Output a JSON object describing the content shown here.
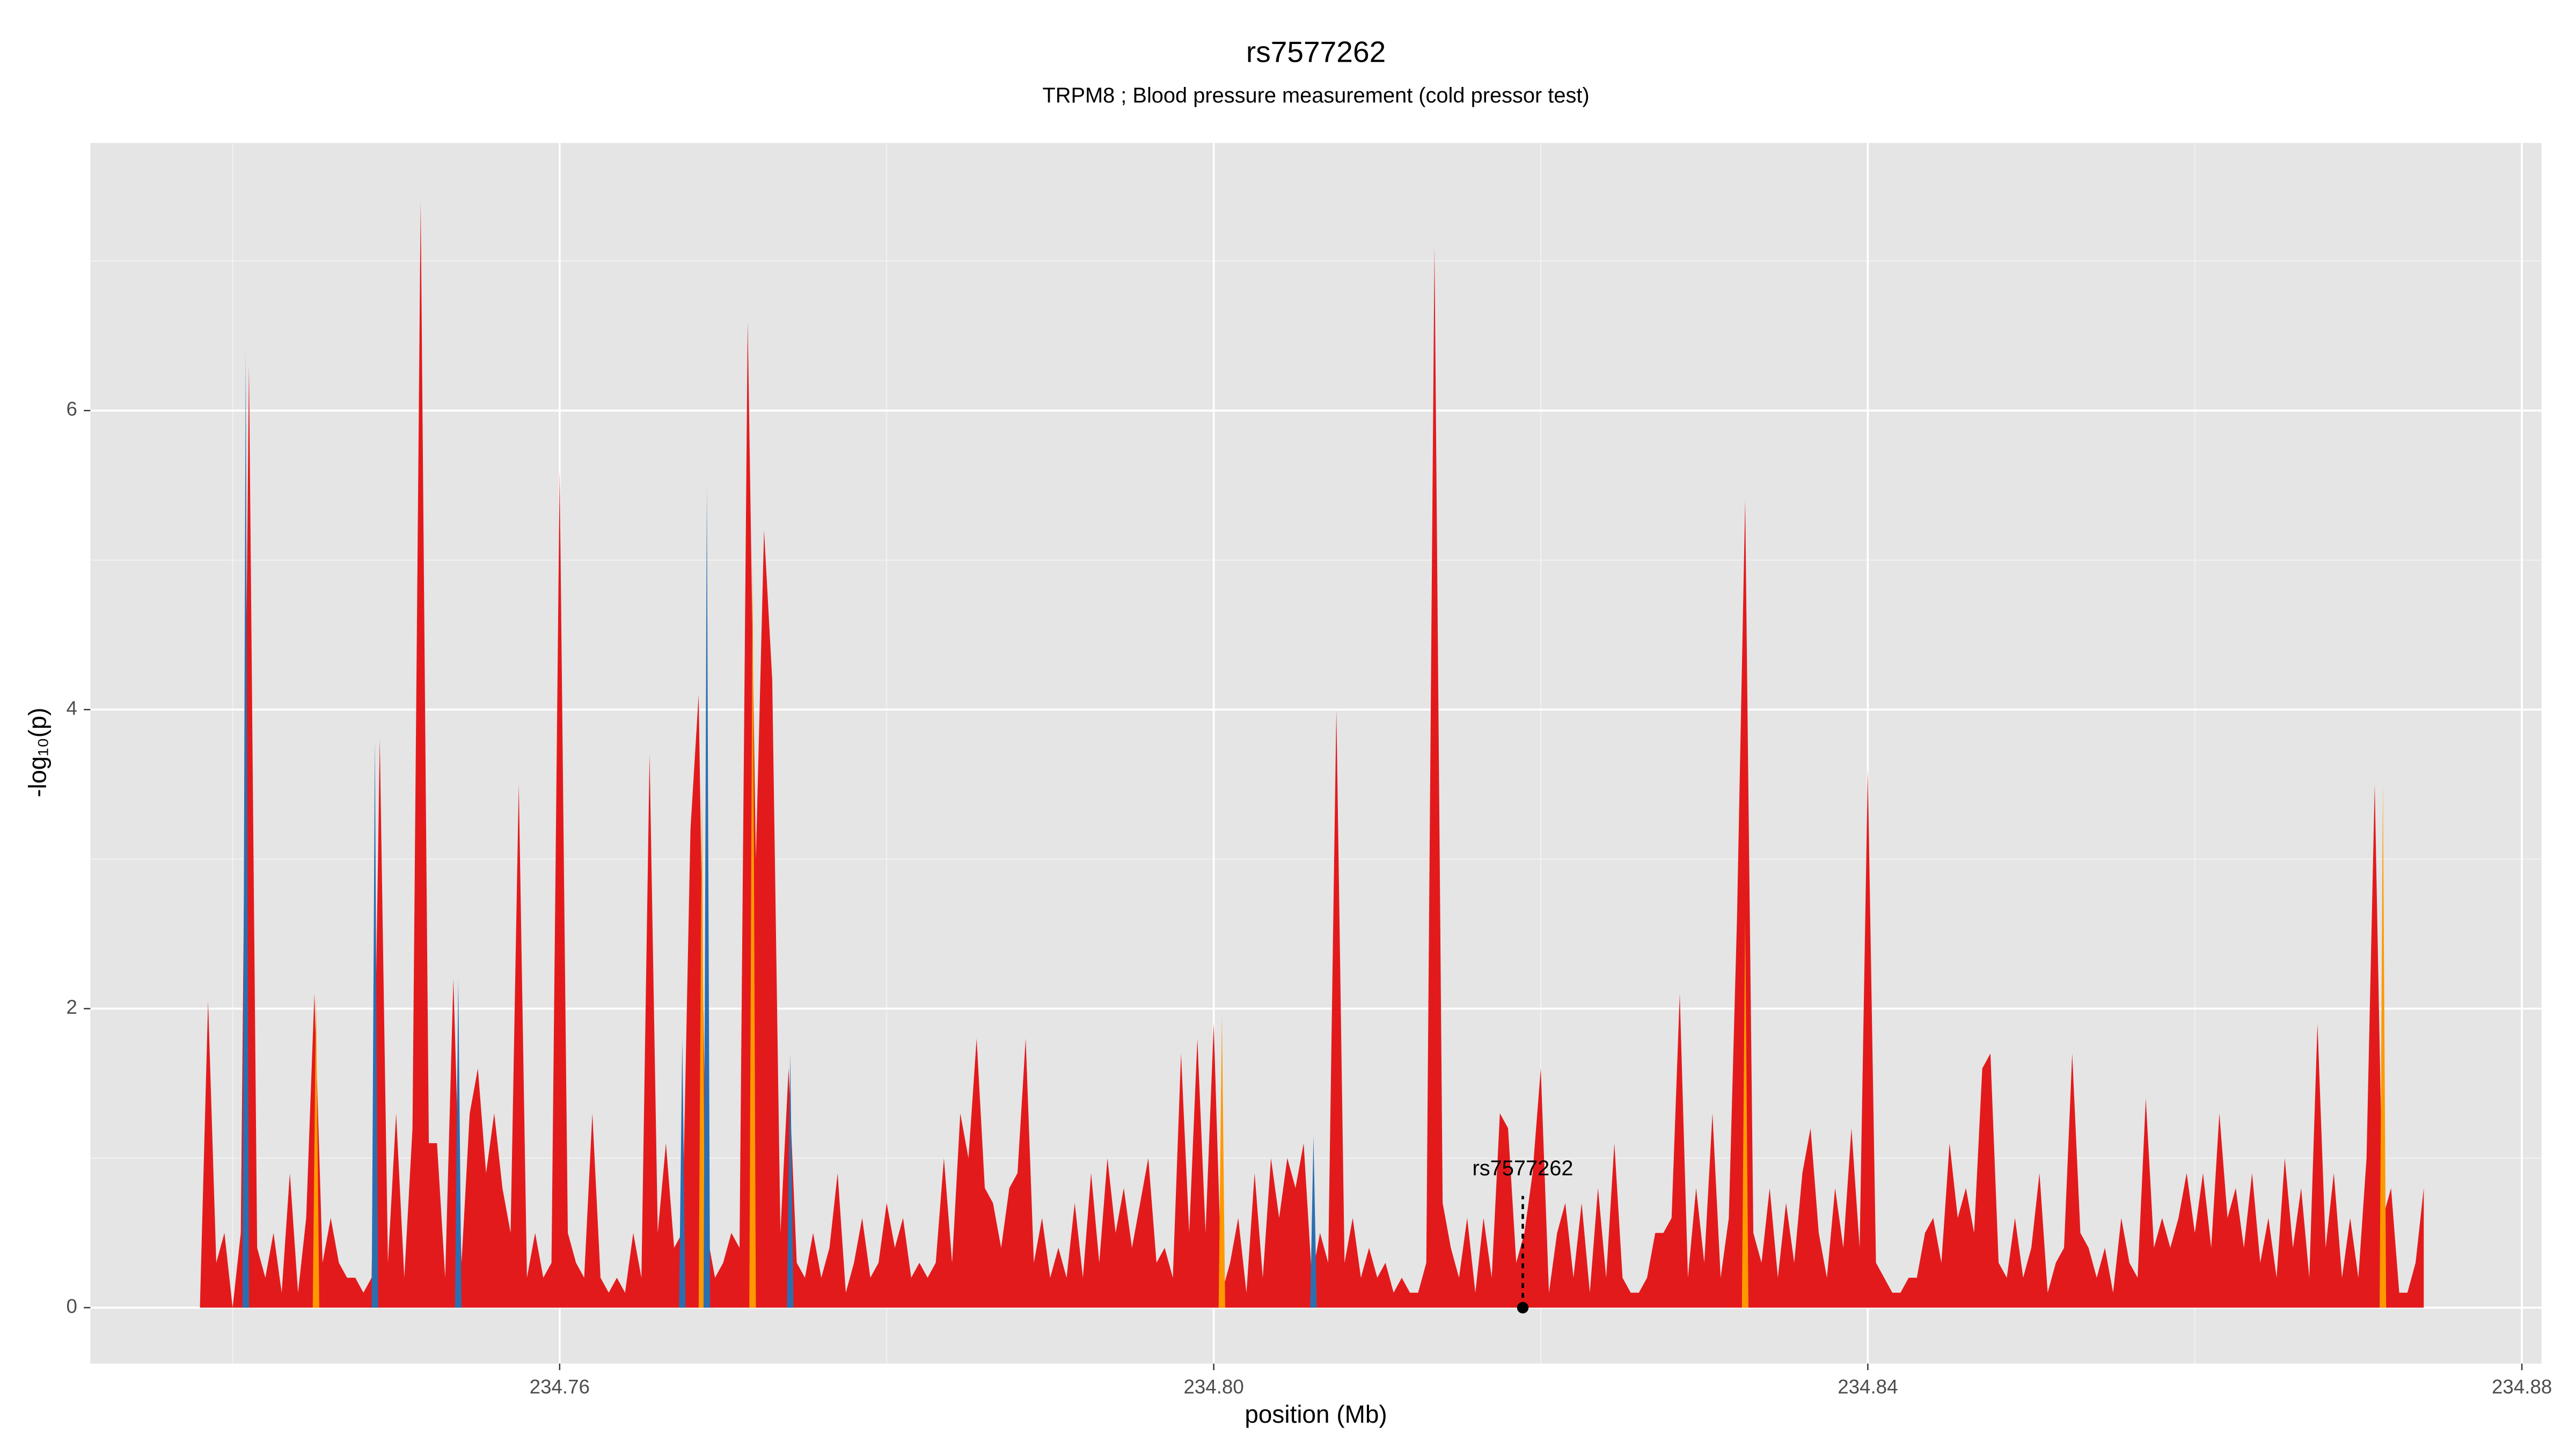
{
  "chart_data": {
    "type": "area",
    "title": "rs7577262",
    "subtitle": "TRPM8 ; Blood pressure measurement (cold pressor test)",
    "x_label": "position (Mb)",
    "y_label": "-log₁₀(p)",
    "xlim": [
      234.7313,
      234.8812
    ],
    "ylim": [
      -0.374,
      7.79
    ],
    "xticks": [
      234.76,
      {
        "value": 234.8,
        "label": "234.80"
      },
      234.84,
      234.88
    ],
    "yticks": [
      0,
      2,
      4,
      6
    ],
    "x_minor_grid": [
      234.74,
      234.78,
      234.82,
      234.86
    ],
    "y_minor_grid": [
      1,
      3,
      5,
      7
    ],
    "grid": true,
    "background": "#e5e5e5",
    "series": [
      {
        "color": "#e31a1c",
        "x": [
          234.738,
          234.7385,
          234.739,
          234.7395,
          234.74,
          234.7405,
          234.741,
          234.7415,
          234.742,
          234.7425,
          234.743,
          234.7435,
          234.744,
          234.7445,
          234.745,
          234.7455,
          234.746,
          234.7465,
          234.747,
          234.7475,
          234.748,
          234.7485,
          234.749,
          234.7495,
          234.75,
          234.7505,
          234.751,
          234.7515,
          234.752,
          234.7525,
          234.753,
          234.7535,
          234.754,
          234.7545,
          234.755,
          234.7555,
          234.756,
          234.7565,
          234.757,
          234.7575,
          234.758,
          234.7585,
          234.759,
          234.7595,
          234.76,
          234.7605,
          234.761,
          234.7615,
          234.762,
          234.7625,
          234.763,
          234.7635,
          234.764,
          234.7645,
          234.765,
          234.7655,
          234.766,
          234.7665,
          234.767,
          234.7675,
          234.768,
          234.7685,
          234.769,
          234.7695,
          234.77,
          234.7705,
          234.771,
          234.7715,
          234.772,
          234.7725,
          234.773,
          234.7735,
          234.774,
          234.7745,
          234.775,
          234.7755,
          234.776,
          234.7765,
          234.777,
          234.7775,
          234.778,
          234.7785,
          234.779,
          234.7795,
          234.78,
          234.7805,
          234.781,
          234.7815,
          234.782,
          234.7825,
          234.783,
          234.7835,
          234.784,
          234.7845,
          234.785,
          234.7855,
          234.786,
          234.7865,
          234.787,
          234.7875,
          234.788,
          234.7885,
          234.789,
          234.7895,
          234.79,
          234.7905,
          234.791,
          234.7915,
          234.792,
          234.7925,
          234.793,
          234.7935,
          234.794,
          234.7945,
          234.795,
          234.7955,
          234.796,
          234.7965,
          234.797,
          234.7975,
          234.798,
          234.7985,
          234.799,
          234.7995,
          234.8,
          234.8005,
          234.801,
          234.8015,
          234.802,
          234.8025,
          234.803,
          234.8035,
          234.804,
          234.8045,
          234.805,
          234.8055,
          234.806,
          234.8065,
          234.807,
          234.8075,
          234.808,
          234.8085,
          234.809,
          234.8095,
          234.81,
          234.8105,
          234.811,
          234.8115,
          234.812,
          234.8125,
          234.813,
          234.8135,
          234.814,
          234.8145,
          234.815,
          234.8155,
          234.816,
          234.8165,
          234.817,
          234.8175,
          234.818,
          234.8185,
          234.819,
          234.8195,
          234.82,
          234.8205,
          234.821,
          234.8215,
          234.822,
          234.8225,
          234.823,
          234.8235,
          234.824,
          234.8245,
          234.825,
          234.8255,
          234.826,
          234.8265,
          234.827,
          234.8275,
          234.828,
          234.8285,
          234.829,
          234.8295,
          234.83,
          234.8305,
          234.831,
          234.8315,
          234.832,
          234.8325,
          234.833,
          234.8335,
          234.834,
          234.8345,
          234.835,
          234.8355,
          234.836,
          234.8365,
          234.837,
          234.8375,
          234.838,
          234.8385,
          234.839,
          234.8395,
          234.84,
          234.8405,
          234.841,
          234.8415,
          234.842,
          234.8425,
          234.843,
          234.8435,
          234.844,
          234.8445,
          234.845,
          234.8455,
          234.846,
          234.8465,
          234.847,
          234.8475,
          234.848,
          234.8485,
          234.849,
          234.8495,
          234.85,
          234.8505,
          234.851,
          234.8515,
          234.852,
          234.8525,
          234.853,
          234.8535,
          234.854,
          234.8545,
          234.855,
          234.8555,
          234.856,
          234.8565,
          234.857,
          234.8575,
          234.858,
          234.8585,
          234.859,
          234.8595,
          234.86,
          234.8605,
          234.861,
          234.8615,
          234.862,
          234.8625,
          234.863,
          234.8635,
          234.864,
          234.8645,
          234.865,
          234.8655,
          234.866,
          234.8665,
          234.867,
          234.8675,
          234.868,
          234.8685,
          234.869,
          234.8695,
          234.87,
          234.8705,
          234.871,
          234.8715,
          234.872,
          234.8725,
          234.873,
          234.8735,
          234.874
        ],
        "values": [
          0,
          2.05,
          0.3,
          0.5,
          0,
          0.5,
          6.3,
          0.4,
          0.2,
          0.5,
          0.1,
          0.9,
          0.1,
          0.6,
          2.1,
          0.3,
          0.6,
          0.3,
          0.2,
          0.2,
          0.1,
          0.2,
          3.8,
          0.3,
          1.3,
          0.2,
          1.2,
          7.4,
          1.1,
          1.1,
          0.2,
          2.2,
          0.3,
          1.3,
          1.6,
          0.9,
          1.3,
          0.8,
          0.5,
          3.5,
          0.2,
          0.5,
          0.2,
          0.3,
          5.6,
          0.5,
          0.3,
          0.2,
          1.3,
          0.2,
          0.1,
          0.2,
          0.1,
          0.5,
          0.2,
          3.7,
          0.5,
          1.1,
          0.4,
          0.5,
          3.2,
          4.1,
          0.5,
          0.2,
          0.3,
          0.5,
          0.4,
          6.6,
          3.0,
          5.2,
          4.2,
          0.5,
          1.6,
          0.3,
          0.2,
          0.5,
          0.2,
          0.4,
          0.9,
          0.1,
          0.3,
          0.6,
          0.2,
          0.3,
          0.7,
          0.4,
          0.6,
          0.2,
          0.3,
          0.2,
          0.3,
          1.0,
          0.3,
          1.3,
          1.0,
          1.8,
          0.8,
          0.7,
          0.4,
          0.8,
          0.9,
          1.8,
          0.3,
          0.6,
          0.2,
          0.4,
          0.2,
          0.7,
          0.2,
          0.9,
          0.3,
          1.0,
          0.5,
          0.8,
          0.4,
          0.7,
          1.0,
          0.3,
          0.4,
          0.2,
          1.7,
          0.5,
          1.8,
          0.5,
          1.9,
          0.1,
          0.3,
          0.6,
          0.1,
          0.9,
          0.2,
          1.0,
          0.6,
          1.0,
          0.8,
          1.1,
          0.2,
          0.5,
          0.3,
          4.0,
          0.3,
          0.6,
          0.2,
          0.4,
          0.2,
          0.3,
          0.1,
          0.2,
          0.1,
          0.1,
          0.3,
          7.1,
          0.7,
          0.4,
          0.2,
          0.6,
          0.1,
          0.6,
          0.2,
          1.3,
          1.2,
          0.3,
          0.5,
          0.9,
          1.6,
          0.1,
          0.5,
          0.7,
          0.2,
          0.7,
          0.1,
          0.8,
          0.2,
          1.1,
          0.2,
          0.1,
          0.1,
          0.2,
          0.5,
          0.5,
          0.6,
          2.1,
          0.2,
          0.8,
          0.3,
          1.3,
          0.2,
          0.6,
          2.6,
          5.4,
          0.5,
          0.3,
          0.8,
          0.2,
          0.7,
          0.3,
          0.9,
          1.2,
          0.5,
          0.2,
          0.8,
          0.4,
          1.2,
          0.4,
          3.6,
          0.3,
          0.2,
          0.1,
          0.1,
          0.2,
          0.2,
          0.5,
          0.6,
          0.3,
          1.1,
          0.6,
          0.8,
          0.5,
          1.6,
          1.7,
          0.3,
          0.2,
          0.6,
          0.2,
          0.4,
          0.9,
          0.1,
          0.3,
          0.4,
          1.7,
          0.5,
          0.4,
          0.2,
          0.4,
          0.1,
          0.6,
          0.3,
          0.2,
          1.4,
          0.4,
          0.6,
          0.4,
          0.6,
          0.9,
          0.5,
          0.9,
          0.4,
          1.3,
          0.6,
          0.8,
          0.4,
          0.9,
          0.3,
          0.6,
          0.2,
          1.0,
          0.4,
          0.8,
          0.2,
          1.9,
          0.4,
          0.9,
          0.2,
          0.6,
          0.2,
          1.0,
          3.5,
          0.6,
          0.8,
          0.1,
          0.1,
          0.3,
          0.8
        ]
      },
      {
        "color": "#ff9900",
        "x": [
          234.7449,
          234.7451,
          234.7453,
          234.7685,
          234.7687,
          234.7689,
          234.7716,
          234.7718,
          234.772,
          234.8003,
          234.8005,
          234.8007,
          234.8323,
          234.8325,
          234.8327,
          234.8713,
          234.8715,
          234.8717
        ],
        "values": [
          0,
          2.1,
          0,
          0,
          3.5,
          0,
          0,
          5.0,
          0,
          0,
          1.95,
          0,
          0,
          2.6,
          0,
          0,
          3.5,
          0
        ]
      },
      {
        "color": "#2c6fb0",
        "x": [
          234.7406,
          234.7408,
          234.741,
          234.7485,
          234.7487,
          234.7489,
          234.7536,
          234.7538,
          234.754,
          234.7673,
          234.7675,
          234.7677,
          234.7688,
          234.769,
          234.7692,
          234.7739,
          234.7741,
          234.7743,
          234.8059,
          234.8061,
          234.8063
        ],
        "values": [
          0,
          6.4,
          0,
          0,
          3.8,
          0,
          0,
          2.2,
          0,
          0,
          1.8,
          0,
          0,
          5.5,
          0,
          0,
          1.7,
          0,
          0,
          1.15,
          0
        ]
      }
    ],
    "annotation": {
      "label": "rs7577262",
      "x": 234.8189,
      "y": 0
    }
  }
}
